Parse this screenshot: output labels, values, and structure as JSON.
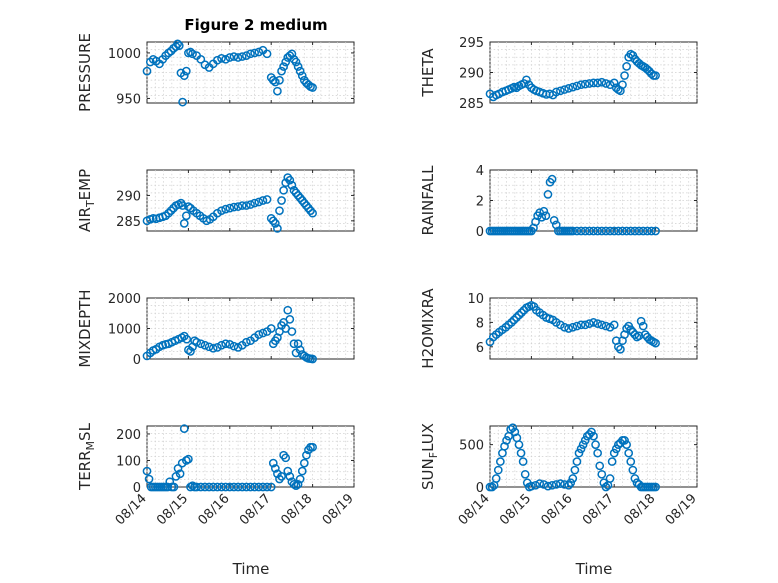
{
  "figure": {
    "title": "Figure 2 medium",
    "marker_color": "#0072BD"
  },
  "chart_data": [
    {
      "type": "scatter",
      "ylabel": "PRESSURE",
      "ylim": [
        945,
        1012
      ],
      "yticks": [
        950,
        1000
      ],
      "xlim": [
        0,
        5
      ],
      "grid": "on",
      "x": [
        0.0,
        0.08,
        0.15,
        0.22,
        0.3,
        0.38,
        0.45,
        0.52,
        0.58,
        0.64,
        0.7,
        0.74,
        0.78,
        0.82,
        0.86,
        0.9,
        0.95,
        1.0,
        1.05,
        1.1,
        1.2,
        1.3,
        1.4,
        1.5,
        1.6,
        1.7,
        1.8,
        1.9,
        2.0,
        2.1,
        2.2,
        2.3,
        2.4,
        2.5,
        2.6,
        2.7,
        2.8,
        2.9,
        3.0,
        3.05,
        3.1,
        3.15,
        3.2,
        3.25,
        3.3,
        3.35,
        3.4,
        3.45,
        3.5,
        3.55,
        3.6,
        3.65,
        3.7,
        3.75,
        3.8,
        3.85,
        3.9,
        3.95,
        4.0
      ],
      "y": [
        980,
        990,
        993,
        991,
        988,
        993,
        997,
        1000,
        1002,
        1005,
        1007,
        1010,
        1008,
        978,
        946,
        975,
        980,
        1000,
        1001,
        999,
        997,
        993,
        987,
        984,
        988,
        992,
        994,
        993,
        995,
        996,
        995,
        996,
        997,
        999,
        1000,
        1001,
        1003,
        999,
        973,
        970,
        968,
        958,
        970,
        980,
        985,
        990,
        995,
        997,
        999,
        993,
        990,
        985,
        980,
        975,
        970,
        967,
        965,
        963,
        962
      ]
    },
    {
      "type": "scatter",
      "ylabel": "THETA",
      "ylim": [
        285,
        295
      ],
      "yticks": [
        285,
        290,
        295
      ],
      "xlim": [
        0,
        5
      ],
      "grid": "on",
      "x": [
        0.0,
        0.08,
        0.15,
        0.22,
        0.3,
        0.38,
        0.45,
        0.52,
        0.58,
        0.64,
        0.7,
        0.76,
        0.82,
        0.88,
        0.94,
        1.0,
        1.06,
        1.12,
        1.2,
        1.28,
        1.36,
        1.44,
        1.52,
        1.6,
        1.7,
        1.8,
        1.9,
        2.0,
        2.1,
        2.2,
        2.3,
        2.4,
        2.5,
        2.6,
        2.7,
        2.8,
        2.9,
        3.0,
        3.05,
        3.1,
        3.15,
        3.2,
        3.25,
        3.3,
        3.35,
        3.4,
        3.45,
        3.5,
        3.55,
        3.6,
        3.65,
        3.7,
        3.75,
        3.8,
        3.85,
        3.9,
        3.95,
        4.0
      ],
      "y": [
        286.5,
        286.0,
        286.3,
        286.5,
        286.8,
        287.0,
        287.2,
        287.4,
        287.6,
        287.5,
        287.8,
        288.0,
        288.2,
        288.8,
        288.0,
        287.5,
        287.2,
        287.0,
        286.8,
        286.6,
        286.4,
        286.5,
        286.3,
        286.8,
        287.0,
        287.2,
        287.4,
        287.6,
        287.8,
        288.0,
        288.1,
        288.2,
        288.3,
        288.3,
        288.4,
        288.2,
        288.0,
        288.3,
        287.5,
        287.2,
        287.0,
        288.0,
        289.5,
        291.0,
        292.5,
        293.0,
        292.8,
        292.2,
        291.8,
        291.5,
        291.2,
        291.0,
        290.8,
        290.5,
        290.2,
        289.8,
        289.5,
        289.5
      ]
    },
    {
      "type": "scatter",
      "ylabel": "AIR_TEMP",
      "ylim": [
        283,
        295
      ],
      "yticks": [
        285,
        290
      ],
      "xlim": [
        0,
        5
      ],
      "grid": "on",
      "x": [
        0.0,
        0.08,
        0.15,
        0.22,
        0.3,
        0.38,
        0.45,
        0.52,
        0.58,
        0.64,
        0.7,
        0.76,
        0.82,
        0.86,
        0.9,
        0.95,
        1.0,
        1.05,
        1.12,
        1.2,
        1.28,
        1.36,
        1.44,
        1.52,
        1.6,
        1.7,
        1.8,
        1.9,
        2.0,
        2.1,
        2.2,
        2.3,
        2.4,
        2.5,
        2.6,
        2.7,
        2.8,
        2.9,
        3.0,
        3.05,
        3.1,
        3.15,
        3.2,
        3.25,
        3.3,
        3.35,
        3.4,
        3.45,
        3.5,
        3.55,
        3.6,
        3.65,
        3.7,
        3.75,
        3.8,
        3.85,
        3.9,
        3.95,
        4.0
      ],
      "y": [
        285.0,
        285.3,
        285.5,
        285.4,
        285.6,
        285.8,
        286.0,
        286.5,
        287.0,
        287.5,
        288.0,
        288.2,
        288.5,
        288.0,
        284.5,
        286.0,
        287.8,
        287.5,
        287.0,
        286.5,
        286.0,
        285.5,
        285.0,
        285.3,
        285.8,
        286.5,
        287.0,
        287.3,
        287.5,
        287.7,
        287.8,
        288.0,
        288.0,
        288.2,
        288.5,
        288.7,
        289.0,
        289.2,
        285.5,
        285.0,
        284.5,
        283.5,
        287.0,
        289.0,
        291.0,
        292.5,
        293.5,
        293.0,
        292.0,
        291.0,
        290.5,
        290.0,
        289.5,
        289.0,
        288.5,
        288.0,
        287.5,
        287.0,
        286.5
      ]
    },
    {
      "type": "scatter",
      "ylabel": "RAINFALL",
      "ylim": [
        0,
        4
      ],
      "yticks": [
        0,
        2,
        4
      ],
      "xlim": [
        0,
        5
      ],
      "grid": "on",
      "x": [
        0.0,
        0.05,
        0.1,
        0.15,
        0.2,
        0.25,
        0.3,
        0.35,
        0.4,
        0.45,
        0.5,
        0.55,
        0.6,
        0.65,
        0.7,
        0.75,
        0.8,
        0.85,
        0.9,
        0.95,
        1.0,
        1.05,
        1.1,
        1.15,
        1.2,
        1.25,
        1.3,
        1.35,
        1.4,
        1.45,
        1.5,
        1.55,
        1.6,
        1.65,
        1.7,
        1.75,
        1.8,
        1.85,
        1.9,
        1.95,
        2.0,
        2.1,
        2.2,
        2.3,
        2.4,
        2.5,
        2.6,
        2.7,
        2.8,
        2.9,
        3.0,
        3.1,
        3.2,
        3.3,
        3.4,
        3.5,
        3.6,
        3.7,
        3.8,
        3.9,
        4.0
      ],
      "y": [
        0,
        0,
        0,
        0,
        0,
        0,
        0,
        0,
        0,
        0,
        0,
        0,
        0,
        0,
        0,
        0,
        0,
        0,
        0,
        0,
        0,
        0.2,
        0.6,
        1.0,
        1.2,
        0.9,
        1.3,
        1.0,
        2.4,
        3.2,
        3.4,
        0.7,
        0.4,
        0,
        0,
        0,
        0,
        0,
        0,
        0,
        0,
        0,
        0,
        0,
        0,
        0,
        0,
        0,
        0,
        0,
        0,
        0,
        0,
        0,
        0,
        0,
        0,
        0,
        0,
        0,
        0
      ]
    },
    {
      "type": "scatter",
      "ylabel": "MIXDEPTH",
      "ylim": [
        0,
        2000
      ],
      "yticks": [
        0,
        1000,
        2000
      ],
      "xlim": [
        0,
        5
      ],
      "grid": "on",
      "x": [
        0.0,
        0.08,
        0.15,
        0.22,
        0.3,
        0.38,
        0.45,
        0.52,
        0.6,
        0.68,
        0.76,
        0.84,
        0.9,
        0.96,
        1.0,
        1.05,
        1.1,
        1.15,
        1.2,
        1.3,
        1.4,
        1.5,
        1.6,
        1.7,
        1.8,
        1.9,
        2.0,
        2.1,
        2.2,
        2.3,
        2.4,
        2.5,
        2.6,
        2.7,
        2.8,
        2.9,
        3.0,
        3.05,
        3.1,
        3.15,
        3.2,
        3.25,
        3.3,
        3.35,
        3.4,
        3.45,
        3.5,
        3.55,
        3.6,
        3.65,
        3.7,
        3.75,
        3.8,
        3.85,
        3.9,
        3.95,
        4.0
      ],
      "y": [
        100,
        200,
        280,
        320,
        400,
        450,
        480,
        500,
        550,
        600,
        650,
        700,
        750,
        650,
        300,
        250,
        400,
        600,
        550,
        500,
        450,
        400,
        350,
        380,
        450,
        500,
        480,
        420,
        380,
        450,
        550,
        600,
        700,
        800,
        850,
        900,
        1000,
        500,
        600,
        700,
        900,
        1100,
        1200,
        1000,
        1600,
        1300,
        900,
        500,
        200,
        500,
        300,
        150,
        100,
        50,
        20,
        10,
        0
      ]
    },
    {
      "type": "scatter",
      "ylabel": "H2OMIXRA",
      "ylim": [
        5,
        10
      ],
      "yticks": [
        6,
        8,
        10
      ],
      "xlim": [
        0,
        5
      ],
      "grid": "on",
      "x": [
        0.0,
        0.08,
        0.15,
        0.22,
        0.3,
        0.38,
        0.45,
        0.52,
        0.58,
        0.64,
        0.7,
        0.76,
        0.82,
        0.88,
        0.94,
        1.0,
        1.06,
        1.12,
        1.2,
        1.28,
        1.36,
        1.44,
        1.52,
        1.6,
        1.7,
        1.8,
        1.9,
        2.0,
        2.1,
        2.2,
        2.3,
        2.4,
        2.5,
        2.6,
        2.7,
        2.8,
        2.9,
        3.0,
        3.05,
        3.1,
        3.15,
        3.2,
        3.25,
        3.3,
        3.35,
        3.4,
        3.45,
        3.5,
        3.55,
        3.6,
        3.65,
        3.7,
        3.75,
        3.8,
        3.85,
        3.9,
        3.95,
        4.0
      ],
      "y": [
        6.4,
        6.8,
        7.0,
        7.2,
        7.4,
        7.6,
        7.8,
        8.0,
        8.2,
        8.4,
        8.6,
        8.8,
        9.0,
        9.2,
        9.3,
        9.4,
        9.3,
        9.0,
        8.8,
        8.6,
        8.4,
        8.3,
        8.2,
        8.0,
        7.8,
        7.6,
        7.5,
        7.6,
        7.7,
        7.8,
        7.8,
        7.9,
        8.0,
        7.9,
        7.8,
        7.7,
        7.6,
        7.8,
        6.5,
        6.0,
        5.8,
        6.5,
        7.0,
        7.5,
        7.7,
        7.4,
        7.2,
        7.0,
        6.8,
        6.9,
        8.1,
        7.7,
        7.0,
        6.8,
        6.6,
        6.5,
        6.4,
        6.3
      ]
    },
    {
      "type": "scatter",
      "ylabel": "TERR_MSL",
      "ylim": [
        0,
        230
      ],
      "yticks": [
        0,
        100,
        200
      ],
      "xlim": [
        0,
        5
      ],
      "grid": "on",
      "x": [
        0.0,
        0.05,
        0.1,
        0.15,
        0.2,
        0.25,
        0.3,
        0.35,
        0.4,
        0.45,
        0.5,
        0.55,
        0.6,
        0.65,
        0.7,
        0.75,
        0.8,
        0.85,
        0.9,
        0.95,
        1.0,
        1.05,
        1.1,
        1.15,
        1.2,
        1.3,
        1.4,
        1.5,
        1.6,
        1.7,
        1.8,
        1.9,
        2.0,
        2.1,
        2.2,
        2.3,
        2.4,
        2.5,
        2.6,
        2.7,
        2.8,
        2.9,
        3.0,
        3.05,
        3.1,
        3.15,
        3.2,
        3.25,
        3.3,
        3.35,
        3.4,
        3.45,
        3.5,
        3.55,
        3.6,
        3.65,
        3.7,
        3.75,
        3.8,
        3.85,
        3.9,
        3.95,
        4.0
      ],
      "y": [
        60,
        30,
        0,
        0,
        0,
        0,
        0,
        0,
        0,
        0,
        0,
        20,
        0,
        0,
        40,
        70,
        50,
        90,
        220,
        100,
        105,
        0,
        5,
        0,
        0,
        0,
        0,
        0,
        0,
        0,
        0,
        0,
        0,
        0,
        0,
        0,
        0,
        0,
        0,
        0,
        0,
        0,
        0,
        90,
        70,
        50,
        30,
        40,
        120,
        110,
        60,
        40,
        20,
        10,
        5,
        10,
        30,
        60,
        90,
        120,
        140,
        150,
        150
      ]
    },
    {
      "type": "scatter",
      "ylabel": "SUN_FLUX",
      "ylim": [
        0,
        720
      ],
      "yticks": [
        0,
        500
      ],
      "xlim": [
        0,
        5
      ],
      "grid": "on",
      "x": [
        0.0,
        0.05,
        0.1,
        0.15,
        0.2,
        0.25,
        0.3,
        0.35,
        0.4,
        0.45,
        0.5,
        0.55,
        0.6,
        0.65,
        0.7,
        0.75,
        0.8,
        0.85,
        0.9,
        0.95,
        1.0,
        1.1,
        1.2,
        1.3,
        1.4,
        1.5,
        1.6,
        1.7,
        1.8,
        1.9,
        1.95,
        2.0,
        2.05,
        2.1,
        2.15,
        2.2,
        2.25,
        2.3,
        2.35,
        2.4,
        2.45,
        2.5,
        2.55,
        2.6,
        2.65,
        2.7,
        2.75,
        2.8,
        2.85,
        2.9,
        2.95,
        3.0,
        3.05,
        3.1,
        3.15,
        3.2,
        3.25,
        3.3,
        3.35,
        3.4,
        3.45,
        3.5,
        3.55,
        3.6,
        3.65,
        3.7,
        3.75,
        3.8,
        3.85,
        3.9,
        3.95,
        4.0
      ],
      "y": [
        0,
        0,
        20,
        100,
        200,
        300,
        400,
        480,
        550,
        600,
        680,
        700,
        650,
        580,
        500,
        400,
        300,
        150,
        50,
        0,
        10,
        20,
        40,
        30,
        10,
        20,
        30,
        40,
        30,
        20,
        50,
        100,
        200,
        300,
        400,
        450,
        500,
        550,
        600,
        620,
        650,
        600,
        500,
        400,
        250,
        150,
        50,
        0,
        20,
        100,
        300,
        400,
        450,
        500,
        520,
        550,
        550,
        500,
        400,
        300,
        200,
        100,
        50,
        30,
        0,
        0,
        0,
        0,
        0,
        0,
        0,
        0
      ]
    }
  ],
  "x_axis": {
    "tick_labels": [
      "08/14",
      "08/15",
      "08/16",
      "08/17",
      "08/18",
      "08/19"
    ],
    "xlabel": "Time"
  }
}
